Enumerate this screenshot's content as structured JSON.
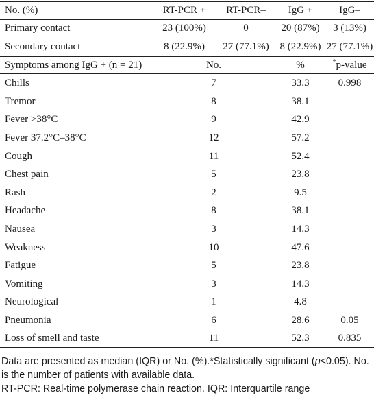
{
  "table": {
    "header": {
      "col1": "No. (%)",
      "col2": "RT-PCR +",
      "col3": "RT-PCR–",
      "col4": "IgG +",
      "col5": "IgG–"
    },
    "contact_rows": [
      {
        "label": "Primary contact",
        "rt_pcr_pos": "23 (100%)",
        "rt_pcr_neg": "0",
        "igg_pos": "20 (87%)",
        "igg_neg": "3 (13%)"
      },
      {
        "label": "Secondary contact",
        "rt_pcr_pos": "8 (22.9%)",
        "rt_pcr_neg": "27 (77.1%)",
        "igg_pos": "8 (22.9%)",
        "igg_neg": "27 (77.1%)"
      }
    ],
    "symptom_header": {
      "label": "Symptoms among IgG + (n = 21)",
      "no": "No.",
      "percent": "%",
      "pvalue_mark": "*",
      "pvalue": "p-value"
    },
    "symptom_rows": [
      {
        "label": "Chills",
        "no": "7",
        "percent": "33.3",
        "pvalue": "0.998"
      },
      {
        "label": "Tremor",
        "no": "8",
        "percent": "38.1",
        "pvalue": ""
      },
      {
        "label": "Fever >38°C",
        "no": "9",
        "percent": "42.9",
        "pvalue": ""
      },
      {
        "label": "Fever 37.2°C–38°C",
        "no": "12",
        "percent": "57.2",
        "pvalue": ""
      },
      {
        "label": "Cough",
        "no": "11",
        "percent": "52.4",
        "pvalue": ""
      },
      {
        "label": "Chest pain",
        "no": "5",
        "percent": "23.8",
        "pvalue": ""
      },
      {
        "label": "Rash",
        "no": "2",
        "percent": "9.5",
        "pvalue": ""
      },
      {
        "label": "Headache",
        "no": "8",
        "percent": "38.1",
        "pvalue": ""
      },
      {
        "label": "Nausea",
        "no": "3",
        "percent": "14.3",
        "pvalue": ""
      },
      {
        "label": "Weakness",
        "no": "10",
        "percent": "47.6",
        "pvalue": ""
      },
      {
        "label": "Fatigue",
        "no": "5",
        "percent": "23.8",
        "pvalue": ""
      },
      {
        "label": "Vomiting",
        "no": "3",
        "percent": "14.3",
        "pvalue": ""
      },
      {
        "label": "Neurological",
        "no": "1",
        "percent": "4.8",
        "pvalue": ""
      },
      {
        "label": "Pneumonia",
        "no": "6",
        "percent": "28.6",
        "pvalue": "0.05"
      },
      {
        "label": "Loss of smell and taste",
        "no": "11",
        "percent": "52.3",
        "pvalue": "0.835"
      }
    ]
  },
  "footnote": {
    "part1": "Data are presented as median (IQR) or No. (%).*Statistically significant (",
    "p_italic": "p",
    "part2": "<0.05). No. is the number of patients with available data.",
    "line2": "RT-PCR: Real-time polymerase chain reaction. IQR: Interquartile range"
  }
}
